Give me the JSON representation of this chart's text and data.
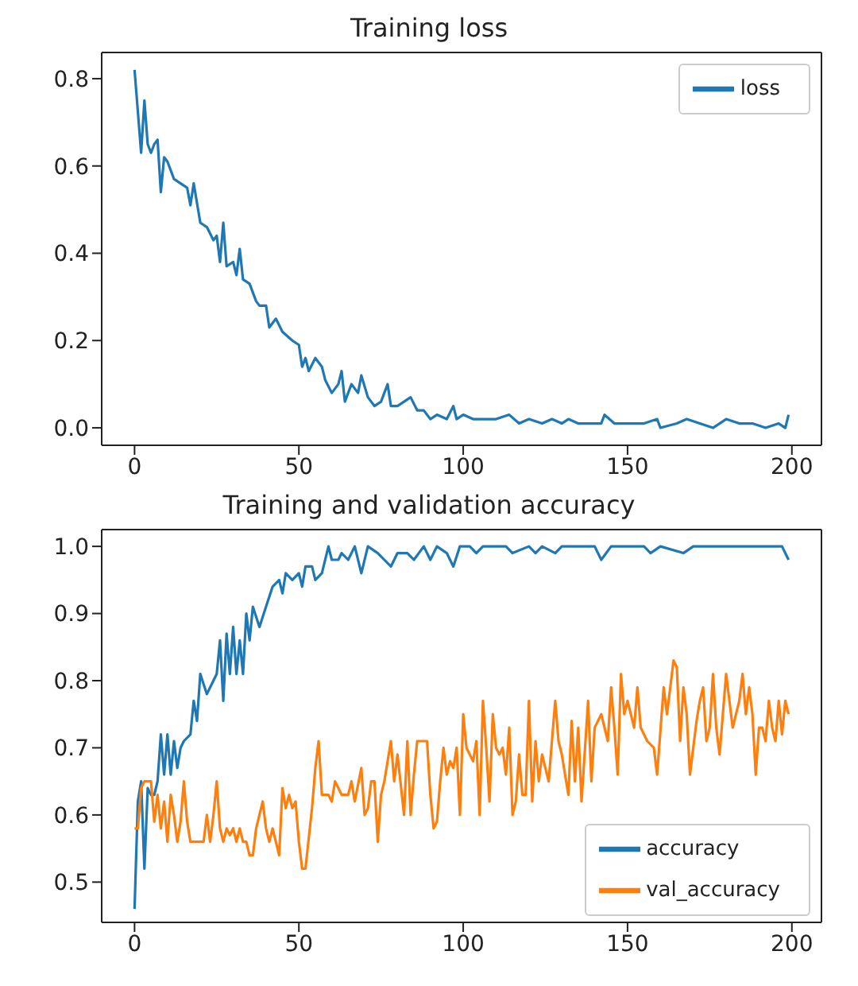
{
  "chart_data": [
    {
      "type": "line",
      "title": "Training loss",
      "xlim": [
        -10,
        209
      ],
      "xticks": [
        0,
        50,
        100,
        150,
        200
      ],
      "ylim": [
        -0.04,
        0.86
      ],
      "yticks": [
        {
          "value": 0,
          "label": "0.0"
        },
        0.2,
        0.4,
        0.6,
        0.8
      ],
      "grid": false,
      "legend": "top right",
      "marker": "none",
      "line_style": "solid",
      "series": [
        {
          "name": "loss",
          "color": "#1f77b4",
          "x": [
            0,
            2,
            3,
            4,
            5,
            6,
            7,
            8,
            9,
            10,
            12,
            14,
            16,
            17,
            18,
            20,
            22,
            24,
            25,
            26,
            27,
            28,
            30,
            31,
            32,
            33,
            35,
            37,
            38,
            40,
            41,
            43,
            45,
            48,
            50,
            51,
            52,
            53,
            55,
            57,
            58,
            60,
            62,
            63,
            64,
            66,
            68,
            69,
            71,
            73,
            75,
            77,
            78,
            80,
            82,
            84,
            86,
            88,
            90,
            92,
            95,
            97,
            98,
            100,
            103,
            106,
            110,
            114,
            117,
            120,
            124,
            127,
            130,
            132,
            135,
            138,
            142,
            143,
            146,
            150,
            155,
            159,
            160,
            165,
            168,
            172,
            176,
            180,
            184,
            188,
            192,
            196,
            198,
            199
          ],
          "values": [
            0.82,
            0.63,
            0.75,
            0.65,
            0.63,
            0.65,
            0.66,
            0.54,
            0.62,
            0.61,
            0.57,
            0.56,
            0.55,
            0.51,
            0.56,
            0.47,
            0.46,
            0.43,
            0.44,
            0.38,
            0.47,
            0.37,
            0.38,
            0.35,
            0.41,
            0.34,
            0.33,
            0.29,
            0.28,
            0.28,
            0.23,
            0.25,
            0.22,
            0.2,
            0.19,
            0.14,
            0.16,
            0.13,
            0.16,
            0.14,
            0.11,
            0.08,
            0.1,
            0.13,
            0.06,
            0.1,
            0.08,
            0.12,
            0.07,
            0.05,
            0.06,
            0.1,
            0.05,
            0.05,
            0.06,
            0.07,
            0.04,
            0.04,
            0.02,
            0.03,
            0.02,
            0.05,
            0.02,
            0.03,
            0.02,
            0.02,
            0.02,
            0.03,
            0.01,
            0.02,
            0.01,
            0.02,
            0.01,
            0.02,
            0.01,
            0.01,
            0.01,
            0.03,
            0.01,
            0.01,
            0.01,
            0.02,
            0.0,
            0.01,
            0.02,
            0.01,
            0.0,
            0.02,
            0.01,
            0.01,
            0.0,
            0.01,
            0.0,
            0.03
          ]
        }
      ]
    },
    {
      "type": "line",
      "title": "Training and validation accuracy",
      "xlim": [
        -10,
        209
      ],
      "xticks": [
        0,
        50,
        100,
        150,
        200
      ],
      "ylim": [
        0.44,
        1.025
      ],
      "yticks": [
        0.5,
        0.6,
        0.7,
        0.8,
        0.9,
        {
          "value": 1,
          "label": "1.0"
        }
      ],
      "grid": false,
      "legend": "bottom right",
      "marker": "none",
      "line_style": "solid",
      "series": [
        {
          "name": "accuracy",
          "color": "#1f77b4",
          "x": [
            0,
            1,
            2,
            3,
            4,
            5,
            6,
            7,
            8,
            9,
            10,
            11,
            12,
            13,
            14,
            15,
            17,
            18,
            19,
            20,
            22,
            24,
            25,
            26,
            27,
            28,
            29,
            30,
            31,
            32,
            33,
            34,
            35,
            36,
            38,
            40,
            42,
            44,
            45,
            46,
            48,
            50,
            51,
            52,
            54,
            55,
            57,
            59,
            60,
            62,
            63,
            65,
            67,
            69,
            71,
            74,
            76,
            78,
            80,
            83,
            85,
            88,
            90,
            92,
            95,
            97,
            99,
            102,
            104,
            106,
            113,
            115,
            120,
            122,
            124,
            128,
            130,
            140,
            142,
            145,
            155,
            157,
            160,
            167,
            170,
            197,
            199
          ],
          "values": [
            0.46,
            0.62,
            0.65,
            0.52,
            0.64,
            0.63,
            0.63,
            0.65,
            0.72,
            0.66,
            0.72,
            0.66,
            0.71,
            0.67,
            0.7,
            0.71,
            0.72,
            0.77,
            0.74,
            0.81,
            0.78,
            0.8,
            0.81,
            0.86,
            0.77,
            0.87,
            0.81,
            0.88,
            0.81,
            0.86,
            0.81,
            0.9,
            0.86,
            0.91,
            0.88,
            0.91,
            0.94,
            0.95,
            0.93,
            0.96,
            0.95,
            0.96,
            0.94,
            0.97,
            0.97,
            0.95,
            0.96,
            1.0,
            0.98,
            0.98,
            0.99,
            0.98,
            1.0,
            0.96,
            1.0,
            0.99,
            0.98,
            0.97,
            0.99,
            0.99,
            0.98,
            1.0,
            0.98,
            1.0,
            0.99,
            0.97,
            1.0,
            1.0,
            0.99,
            1.0,
            1.0,
            0.99,
            1.0,
            0.99,
            1.0,
            0.99,
            1.0,
            1.0,
            0.98,
            1.0,
            1.0,
            0.99,
            1.0,
            0.99,
            1.0,
            1.0,
            0.98
          ]
        },
        {
          "name": "val_accuracy",
          "color": "#ff7f0e",
          "x": [
            0,
            1,
            2,
            3,
            5,
            6,
            7,
            8,
            9,
            10,
            11,
            12,
            13,
            14,
            15,
            16,
            17,
            19,
            21,
            22,
            23,
            24,
            25,
            26,
            27,
            28,
            29,
            30,
            31,
            32,
            33,
            34,
            35,
            36,
            37,
            38,
            39,
            40,
            41,
            42,
            43,
            44,
            45,
            46,
            47,
            48,
            49,
            50,
            51,
            52,
            54,
            55,
            56,
            57,
            59,
            60,
            61,
            63,
            65,
            66,
            67,
            69,
            70,
            71,
            72,
            73,
            74,
            75,
            76,
            78,
            79,
            80,
            82,
            83,
            84,
            85,
            86,
            89,
            90,
            91,
            92,
            93,
            94,
            95,
            96,
            97,
            98,
            99,
            100,
            101,
            103,
            104,
            105,
            106,
            107,
            108,
            109,
            110,
            111,
            112,
            113,
            114,
            115,
            116,
            117,
            118,
            119,
            120,
            121,
            122,
            123,
            124,
            126,
            128,
            129,
            130,
            132,
            133,
            134,
            135,
            136,
            138,
            139,
            140,
            142,
            144,
            145,
            146,
            147,
            148,
            149,
            150,
            152,
            153,
            154,
            156,
            158,
            159,
            161,
            162,
            164,
            165,
            166,
            167,
            168,
            169,
            171,
            172,
            173,
            174,
            175,
            176,
            177,
            178,
            179,
            180,
            181,
            182,
            184,
            185,
            186,
            187,
            188,
            189,
            190,
            191,
            192,
            193,
            194,
            195,
            196,
            197,
            198,
            199
          ],
          "values": [
            0.58,
            0.58,
            0.64,
            0.65,
            0.65,
            0.59,
            0.63,
            0.58,
            0.62,
            0.56,
            0.63,
            0.6,
            0.56,
            0.59,
            0.65,
            0.59,
            0.56,
            0.56,
            0.56,
            0.6,
            0.56,
            0.6,
            0.65,
            0.58,
            0.56,
            0.58,
            0.57,
            0.58,
            0.56,
            0.58,
            0.56,
            0.56,
            0.54,
            0.54,
            0.58,
            0.6,
            0.62,
            0.58,
            0.56,
            0.58,
            0.56,
            0.54,
            0.64,
            0.61,
            0.63,
            0.61,
            0.62,
            0.56,
            0.52,
            0.52,
            0.61,
            0.67,
            0.71,
            0.63,
            0.63,
            0.62,
            0.65,
            0.63,
            0.63,
            0.65,
            0.62,
            0.67,
            0.6,
            0.61,
            0.65,
            0.65,
            0.56,
            0.63,
            0.65,
            0.71,
            0.65,
            0.69,
            0.6,
            0.71,
            0.6,
            0.66,
            0.71,
            0.71,
            0.63,
            0.58,
            0.59,
            0.65,
            0.7,
            0.66,
            0.68,
            0.67,
            0.7,
            0.6,
            0.75,
            0.7,
            0.68,
            0.71,
            0.6,
            0.77,
            0.7,
            0.62,
            0.75,
            0.7,
            0.69,
            0.7,
            0.66,
            0.73,
            0.6,
            0.62,
            0.69,
            0.63,
            0.63,
            0.77,
            0.62,
            0.71,
            0.65,
            0.69,
            0.65,
            0.77,
            0.71,
            0.69,
            0.63,
            0.74,
            0.65,
            0.73,
            0.62,
            0.77,
            0.65,
            0.73,
            0.75,
            0.71,
            0.79,
            0.73,
            0.66,
            0.81,
            0.75,
            0.77,
            0.73,
            0.79,
            0.73,
            0.71,
            0.7,
            0.66,
            0.79,
            0.75,
            0.83,
            0.82,
            0.71,
            0.79,
            0.75,
            0.66,
            0.74,
            0.77,
            0.79,
            0.71,
            0.73,
            0.81,
            0.73,
            0.69,
            0.75,
            0.81,
            0.77,
            0.73,
            0.77,
            0.81,
            0.75,
            0.79,
            0.75,
            0.66,
            0.73,
            0.73,
            0.71,
            0.77,
            0.73,
            0.71,
            0.77,
            0.72,
            0.77,
            0.75
          ]
        }
      ]
    }
  ]
}
